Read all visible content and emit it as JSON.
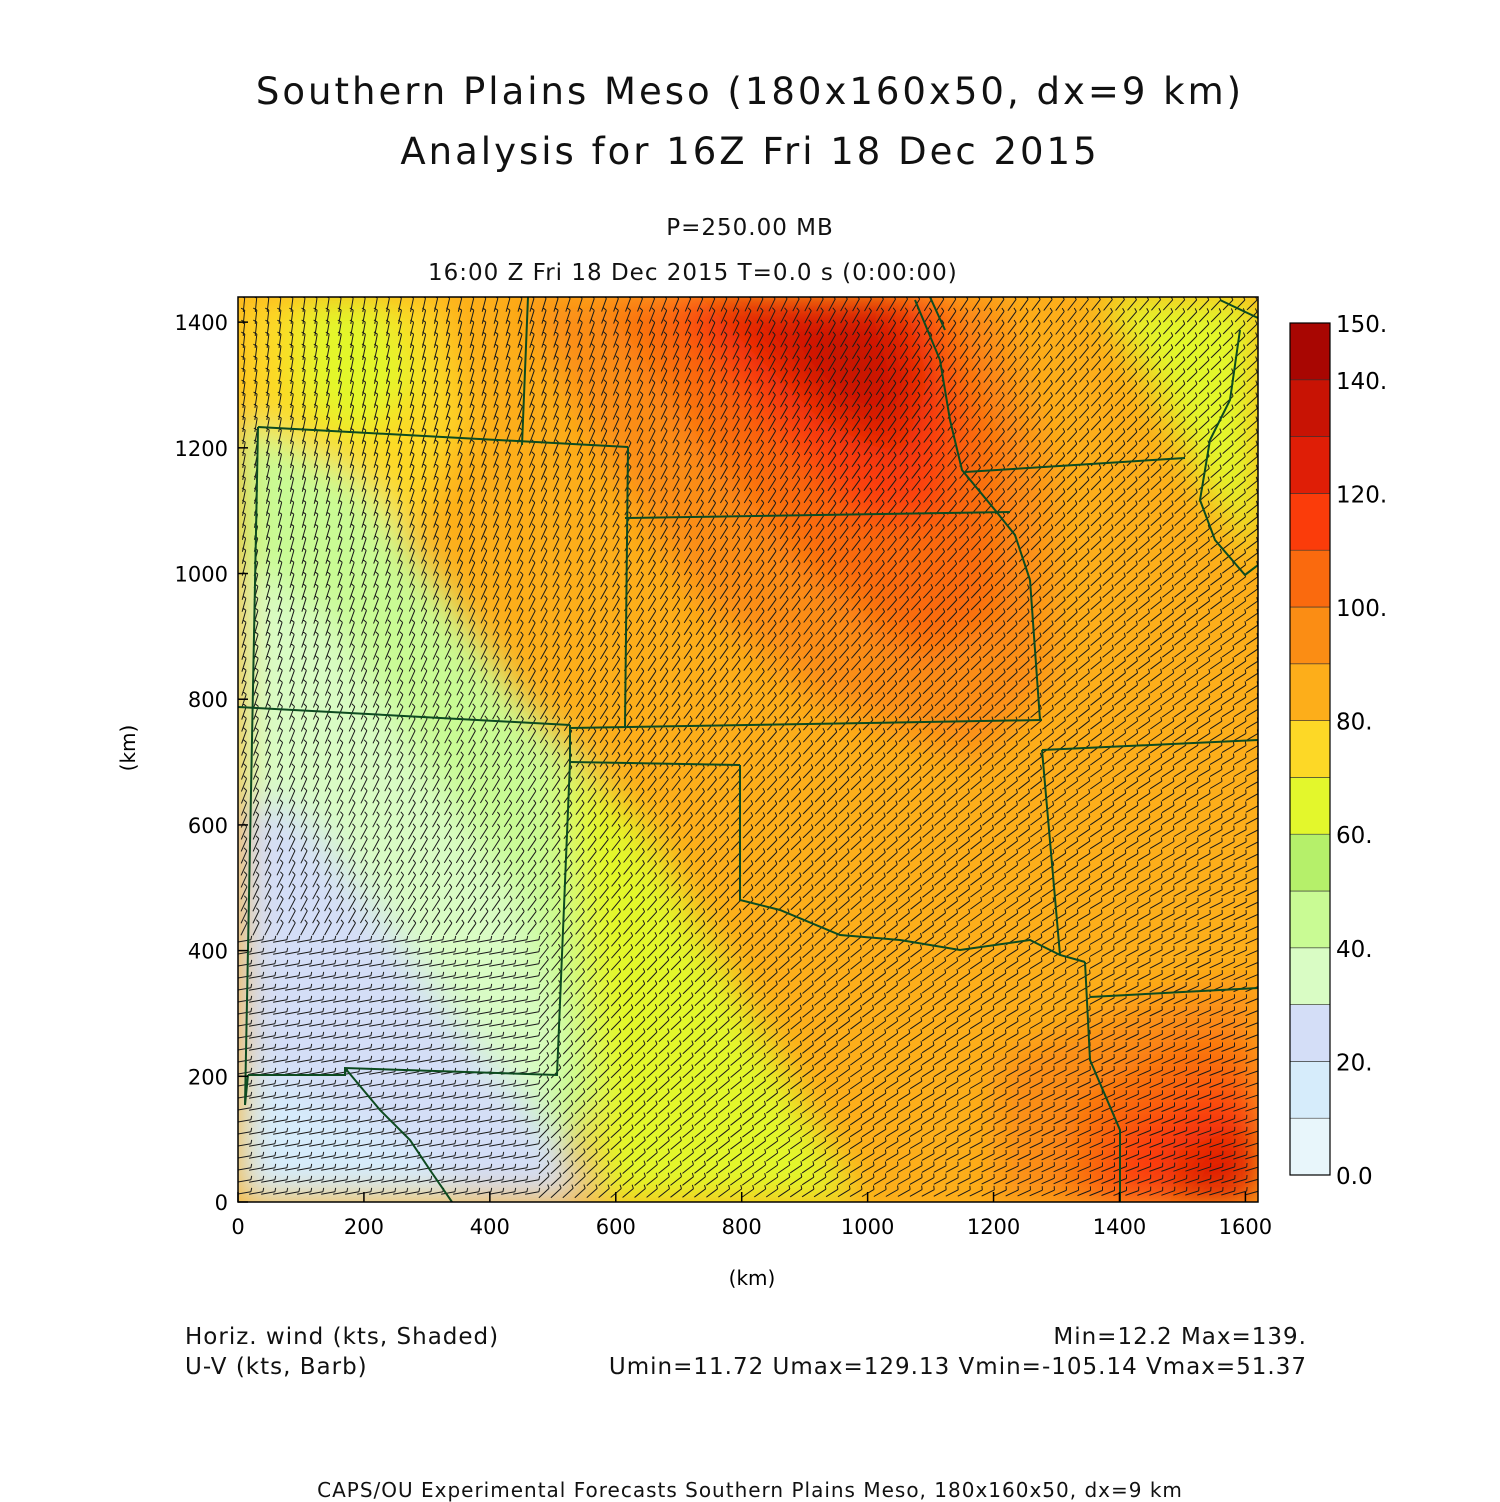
{
  "header": {
    "title_line1": "Southern Plains Meso (180x160x50, dx=9 km)",
    "title_line2": "Analysis for 16Z Fri 18 Dec 2015",
    "level": "P=250.00 MB",
    "time": "16:00 Z Fri 18 Dec 2015    T=0.0 s (0:00:00)"
  },
  "map": {
    "x_axis_label": "(km)",
    "y_axis_label": "(km)",
    "x_range_km": [
      0,
      1620
    ],
    "y_range_km": [
      0,
      1440
    ],
    "x_ticks": [
      "0",
      "200",
      "400",
      "600",
      "800",
      "1000",
      "1200",
      "1400",
      "1600"
    ],
    "y_ticks": [
      "0",
      "200",
      "400",
      "600",
      "800",
      "1000",
      "1200",
      "1400"
    ],
    "boundary_color": "#0d4b20",
    "barb_color": "#1a1a1a"
  },
  "colorbar": {
    "labels": [
      "0.0",
      "20.",
      "40.",
      "60.",
      "80.",
      "100.",
      "120.",
      "140.",
      "150."
    ],
    "bins": [
      {
        "from": 0,
        "to": 10,
        "color": "#e8f6fb"
      },
      {
        "from": 10,
        "to": 20,
        "color": "#d6ecfb"
      },
      {
        "from": 20,
        "to": 30,
        "color": "#d4def7"
      },
      {
        "from": 30,
        "to": 40,
        "color": "#d9fcc4"
      },
      {
        "from": 40,
        "to": 50,
        "color": "#c9fb94"
      },
      {
        "from": 50,
        "to": 60,
        "color": "#b5f06a"
      },
      {
        "from": 60,
        "to": 70,
        "color": "#e3f72c"
      },
      {
        "from": 70,
        "to": 80,
        "color": "#fdd826"
      },
      {
        "from": 80,
        "to": 90,
        "color": "#fdae1a"
      },
      {
        "from": 90,
        "to": 100,
        "color": "#fb8d14"
      },
      {
        "from": 100,
        "to": 110,
        "color": "#fa6a0e"
      },
      {
        "from": 110,
        "to": 120,
        "color": "#fb3c0a"
      },
      {
        "from": 120,
        "to": 130,
        "color": "#df1e06"
      },
      {
        "from": 130,
        "to": 140,
        "color": "#c81304"
      },
      {
        "from": 140,
        "to": 150,
        "color": "#a80602"
      }
    ]
  },
  "footer": {
    "field1": "Horiz. wind (kts, Shaded)",
    "field2": "U-V (kts, Barb)",
    "minmax": "Min=12.2  Max=139.",
    "uv_stats": "Umin=11.72  Umax=129.13  Vmin=-105.14  Vmax=51.37",
    "credit": "CAPS/OU Experimental Forecasts  Southern Plains Meso, 180x160x50, dx=9 km"
  }
}
